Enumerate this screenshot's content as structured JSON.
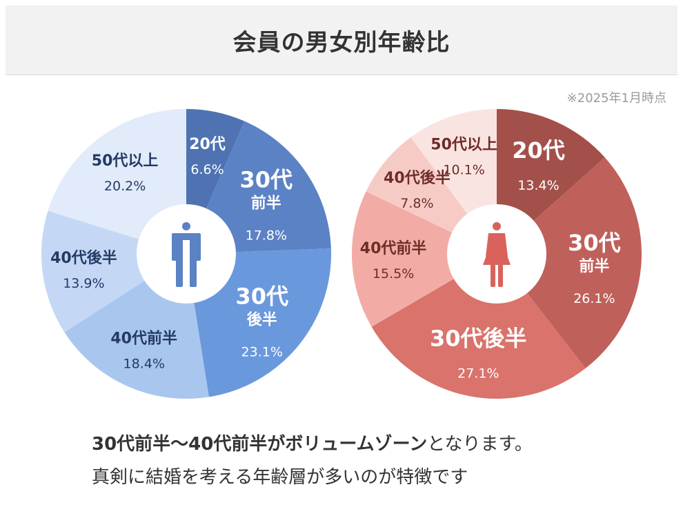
{
  "title": "会員の男女別年齢比",
  "note": "※2025年1月時点",
  "caption": {
    "line1_strong": "30代前半〜40代前半がボリュームゾーン",
    "line1_rest": "となります。",
    "line2": "真剣に結婚を考える年齢層が多いのが特徴です"
  },
  "icons": {
    "male": "male-person-icon",
    "female": "female-person-icon"
  },
  "chart_data": [
    {
      "type": "pie",
      "donut": true,
      "icon": "male-person-icon",
      "categories": [
        "20代",
        "30代前半",
        "30代後半",
        "40代前半",
        "40代後半",
        "50代以上"
      ],
      "values": [
        6.6,
        17.8,
        23.1,
        18.4,
        13.9,
        20.2
      ],
      "value_labels": [
        "6.6%",
        "17.8%",
        "23.1%",
        "18.4%",
        "13.9%",
        "20.2%"
      ],
      "slice_labels": [
        [
          "20代"
        ],
        [
          "30代",
          "前半"
        ],
        [
          "30代",
          "後半"
        ],
        [
          "40代前半"
        ],
        [
          "40代後半"
        ],
        [
          "50代以上"
        ]
      ],
      "colors": [
        "#4f73b2",
        "#5b82c4",
        "#6a98dc",
        "#a9c6ef",
        "#c4d8f5",
        "#e1ebf9"
      ],
      "label_colors": [
        "#ffffff",
        "#ffffff",
        "#ffffff",
        "#233a66",
        "#233a66",
        "#233a66"
      ],
      "icon_color": "#5b82c4"
    },
    {
      "type": "pie",
      "donut": true,
      "icon": "female-person-icon",
      "categories": [
        "20代",
        "30代前半",
        "30代後半",
        "40代前半",
        "40代後半",
        "50代以上"
      ],
      "values": [
        13.4,
        26.1,
        27.1,
        15.5,
        7.8,
        10.1
      ],
      "value_labels": [
        "13.4%",
        "26.1%",
        "27.1%",
        "15.5%",
        "7.8%",
        "10.1%"
      ],
      "slice_labels": [
        [
          "20代"
        ],
        [
          "30代",
          "前半"
        ],
        [
          "30代後半"
        ],
        [
          "40代前半"
        ],
        [
          "40代後半"
        ],
        [
          "50代以上"
        ]
      ],
      "colors": [
        "#a4504a",
        "#c0605a",
        "#d9736b",
        "#f2aca5",
        "#f6cbc6",
        "#fae4e1"
      ],
      "label_colors": [
        "#ffffff",
        "#ffffff",
        "#ffffff",
        "#6e2c28",
        "#6e2c28",
        "#6e2c28"
      ],
      "icon_color": "#d9635b"
    }
  ]
}
